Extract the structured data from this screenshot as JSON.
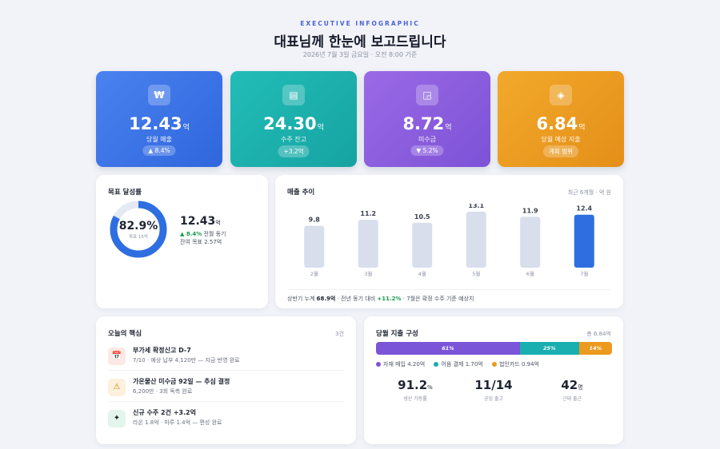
{
  "header": {
    "kicker": "EXECUTIVE INFOGRAPHIC",
    "title": "대표님께 한눈에 보고드립니다",
    "subtitle": "2026년 7월 3일 금요일 · 오전 8:00 기준"
  },
  "kpis": [
    {
      "icon": "₩",
      "icon_name": "won-icon",
      "value": "12.43",
      "unit": "억",
      "label": "당월 매출",
      "badge": "▲ 8.4%"
    },
    {
      "icon": "▤",
      "icon_name": "backlog-icon",
      "value": "24.30",
      "unit": "억",
      "label": "수주 잔고",
      "badge": "+3.2억"
    },
    {
      "icon": "◲",
      "icon_name": "receivable-icon",
      "value": "8.72",
      "unit": "억",
      "label": "미수금",
      "badge": "▼ 5.2%"
    },
    {
      "icon": "◈",
      "icon_name": "expense-icon",
      "value": "6.84",
      "unit": "억",
      "label": "당월 예상 지출",
      "badge": "계획 범위"
    }
  ],
  "goal": {
    "title": "목표 달성률",
    "percent": "82.9%",
    "percent_value": 82.9,
    "target": "목표 15억",
    "value": "12.43",
    "unit": "억",
    "change": "▲ 8.4%",
    "change_suffix": " 전월 동기",
    "remaining": "잔여 목표 2.57억"
  },
  "trend": {
    "title": "매출 추이",
    "note": "최근 6개월 · 억 원",
    "footer": {
      "p1": "상반기 누계 ",
      "total": "68.9억",
      "p2": " · 전년 동기 대비 ",
      "growth": "+11.2%",
      "p3": " · 7월은 확정 수주 기준 예상치"
    }
  },
  "chart_data": {
    "type": "bar",
    "categories": [
      "2월",
      "3월",
      "4월",
      "5월",
      "6월",
      "7월"
    ],
    "values": [
      9.8,
      11.2,
      10.5,
      13.1,
      11.9,
      12.4
    ],
    "title": "매출 추이",
    "xlabel": "",
    "ylabel": "",
    "highlight_index": 5,
    "colors": {
      "bar": "#d8deec",
      "highlight": "#2f6ee0",
      "label": "#3c4150",
      "axis": "#8a90a0"
    }
  },
  "highlights": {
    "title": "오늘의 핵심",
    "count": "3건",
    "items": [
      {
        "icon": "📅",
        "icon_name": "calendar-icon",
        "bg": "#fde8e5",
        "title": "부가세 확정신고 D-7",
        "sub": "7/10 · 예상 납부 4,120만 — 자금 반영 완료"
      },
      {
        "icon": "⚠",
        "icon_name": "warning-icon",
        "bg": "#fdf0dc",
        "title": "가온물산 미수금 92일 — 추심 결정",
        "sub": "6,200만 · 3회 독촉 완료"
      },
      {
        "icon": "✦",
        "icon_name": "sparkle-icon",
        "bg": "#e3f5ec",
        "title": "신규 수주 2건 +3.2억",
        "sub": "라온 1.8억 · 마루 1.4억 — 편성 완료"
      }
    ]
  },
  "expense": {
    "title": "당월 지출 구성",
    "total": "총 6.84억",
    "segments": [
      {
        "label": "61%",
        "share": 61,
        "color": "#7b55d8"
      },
      {
        "label": "25%",
        "share": 25,
        "color": "#19aeb0"
      },
      {
        "label": "14%",
        "share": 14,
        "color": "#eb9a1e"
      }
    ],
    "legend": [
      {
        "text": "자재 매입 4.20억",
        "color": "#7b55d8"
      },
      {
        "text": "어음 결제 1.70억",
        "color": "#19aeb0"
      },
      {
        "text": "법인카드 0.94억",
        "color": "#eb9a1e"
      }
    ],
    "stats": [
      {
        "value": "91.2",
        "unit": "%",
        "label": "생산 가동률"
      },
      {
        "value": "11/14",
        "unit": "",
        "label": "공임 출고"
      },
      {
        "value": "42",
        "unit": "명",
        "label": "근태 출근"
      }
    ]
  }
}
